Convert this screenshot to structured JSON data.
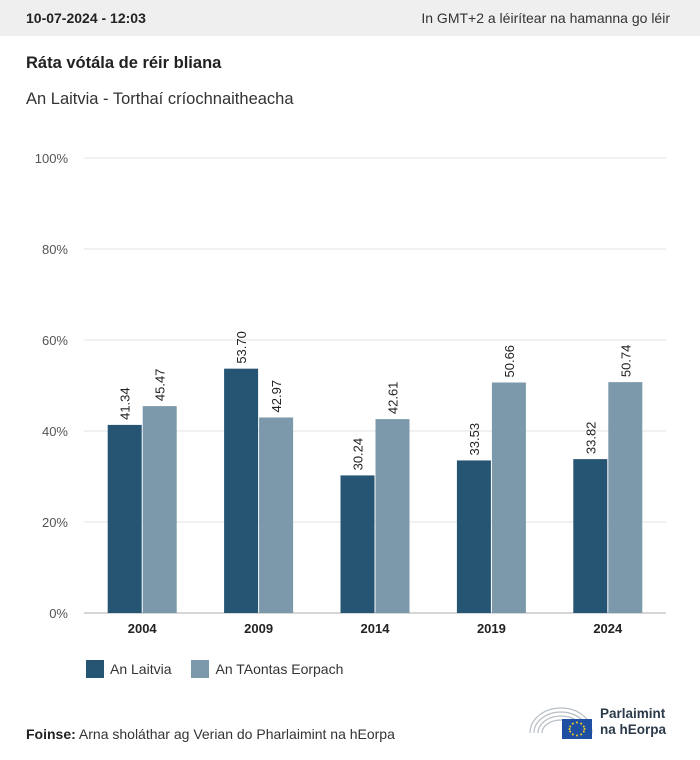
{
  "header": {
    "date": "10-07-2024 - 12:03",
    "timezone_note": "In GMT+2 a léirítear na hamanna go léir"
  },
  "title": "Ráta vótála de réir bliana",
  "subtitle": "An Laitvia - Torthaí críochnaitheacha",
  "legend": {
    "series1_label": "An Laitvia",
    "series2_label": "An TAontas Eorpach"
  },
  "source": {
    "label": "Foinse:",
    "text": "Arna sholáthar ag Verian do Pharlaimint na hEorpa"
  },
  "logo": {
    "line1": "Parlaimint",
    "line2": "na hEorpa"
  },
  "colors": {
    "series1": "#265473",
    "series2": "#7b99ab",
    "grid": "#e3e3e3",
    "axis": "#bdbdbd"
  },
  "chart_data": {
    "type": "bar",
    "categories": [
      "2004",
      "2009",
      "2014",
      "2019",
      "2024"
    ],
    "series": [
      {
        "name": "An Laitvia",
        "values": [
          41.34,
          53.7,
          30.24,
          33.53,
          33.82
        ]
      },
      {
        "name": "An TAontas Eorpach",
        "values": [
          45.47,
          42.97,
          42.61,
          50.66,
          50.74
        ]
      }
    ],
    "ylim": [
      0,
      100
    ],
    "yticks": [
      0,
      20,
      40,
      60,
      80,
      100
    ],
    "ytick_suffix": "%",
    "grid": true,
    "legend_position": "bottom-left"
  }
}
